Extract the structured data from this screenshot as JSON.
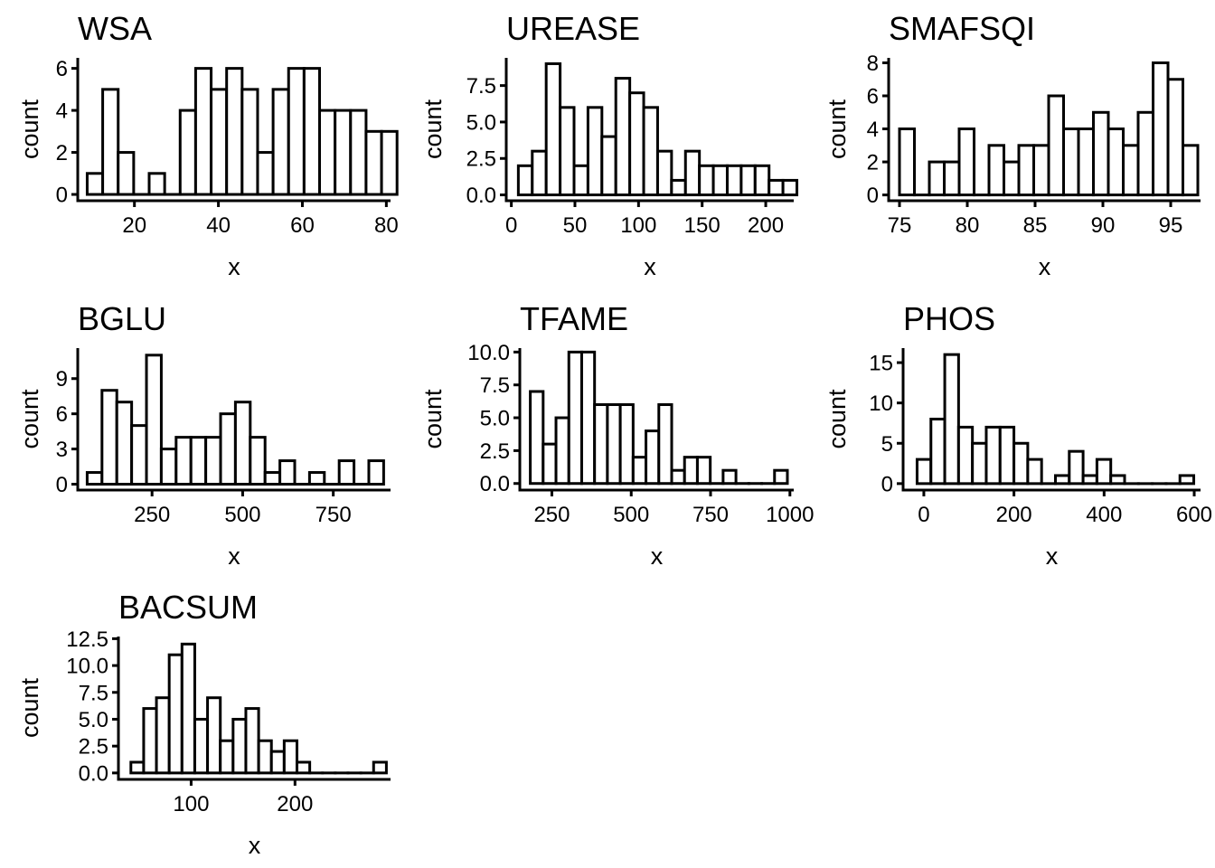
{
  "chart_data": [
    {
      "type": "bar",
      "title": "WSA",
      "xlabel": "x",
      "ylabel": "count",
      "xlim": [
        6.5,
        81
      ],
      "ylim": [
        -0.3,
        6.5
      ],
      "xticks": [
        20,
        40,
        60,
        80
      ],
      "xtick_labels": [
        "20",
        "40",
        "60",
        "80"
      ],
      "yticks": [
        0,
        2,
        4,
        6
      ],
      "ytick_labels": [
        "0",
        "2",
        "4",
        "6"
      ],
      "bin_start": 8.75,
      "bin_width": 3.69,
      "values": [
        1,
        5,
        2,
        0,
        1,
        0,
        4,
        6,
        5,
        6,
        5,
        2,
        5,
        6,
        6,
        4,
        4,
        4,
        3,
        3
      ]
    },
    {
      "type": "bar",
      "title": "UREASE",
      "xlabel": "x",
      "ylabel": "count",
      "xlim": [
        -4,
        222
      ],
      "ylim": [
        -0.4,
        9.4
      ],
      "xticks": [
        0,
        50,
        100,
        150,
        200
      ],
      "xtick_labels": [
        "0",
        "50",
        "100",
        "150",
        "200"
      ],
      "yticks": [
        0,
        2.5,
        5,
        7.5
      ],
      "ytick_labels": [
        "0.0",
        "2.5",
        "5.0",
        "7.5"
      ],
      "bin_start": 5.5,
      "bin_width": 10.95,
      "values": [
        2,
        3,
        9,
        6,
        2,
        6,
        4,
        8,
        7,
        6,
        3,
        1,
        3,
        2,
        2,
        2,
        2,
        2,
        1,
        1
      ]
    },
    {
      "type": "bar",
      "title": "SMAFSQI",
      "xlabel": "x",
      "ylabel": "count",
      "xlim": [
        74.2,
        97.2
      ],
      "ylim": [
        -0.35,
        8.3
      ],
      "xticks": [
        75,
        80,
        85,
        90,
        95
      ],
      "xtick_labels": [
        "75",
        "80",
        "85",
        "90",
        "95"
      ],
      "yticks": [
        0,
        2,
        4,
        6,
        8
      ],
      "ytick_labels": [
        "0",
        "2",
        "4",
        "6",
        "8"
      ],
      "bin_start": 75.0,
      "bin_width": 1.1,
      "values": [
        4,
        0,
        2,
        2,
        4,
        0,
        3,
        2,
        3,
        3,
        6,
        4,
        4,
        5,
        4,
        3,
        5,
        8,
        7,
        3
      ]
    },
    {
      "type": "bar",
      "title": "BGLU",
      "xlabel": "x",
      "ylabel": "count",
      "xlim": [
        45,
        908
      ],
      "ylim": [
        -0.5,
        11.6
      ],
      "xticks": [
        250,
        500,
        750
      ],
      "xtick_labels": [
        "250",
        "500",
        "750"
      ],
      "yticks": [
        0,
        3,
        6,
        9
      ],
      "ytick_labels": [
        "0",
        "3",
        "6",
        "9"
      ],
      "bin_start": 71,
      "bin_width": 40.9,
      "values": [
        1,
        8,
        7,
        5,
        11,
        3,
        4,
        4,
        4,
        6,
        7,
        4,
        1,
        2,
        0,
        1,
        0,
        2,
        0,
        2
      ]
    },
    {
      "type": "bar",
      "title": "TFAME",
      "xlabel": "x",
      "ylabel": "count",
      "xlim": [
        149,
        1012
      ],
      "ylim": [
        -0.5,
        10.3
      ],
      "xticks": [
        250,
        500,
        750,
        1000
      ],
      "xtick_labels": [
        "250",
        "500",
        "750",
        "1000"
      ],
      "yticks": [
        0,
        2.5,
        5,
        7.5,
        10
      ],
      "ytick_labels": [
        "0.0",
        "2.5",
        "5.0",
        "7.5",
        "10.0"
      ],
      "bin_start": 182,
      "bin_width": 40.5,
      "values": [
        7,
        3,
        5,
        10,
        10,
        6,
        6,
        6,
        2,
        4,
        6,
        1,
        2,
        2,
        0,
        1,
        0,
        0,
        0,
        1
      ]
    },
    {
      "type": "bar",
      "title": "PHOS",
      "xlabel": "x",
      "ylabel": "count",
      "xlim": [
        -46,
        614
      ],
      "ylim": [
        -0.8,
        16.8
      ],
      "xticks": [
        0,
        200,
        400,
        600
      ],
      "xtick_labels": [
        "0",
        "200",
        "400",
        "600"
      ],
      "yticks": [
        0,
        5,
        10,
        15
      ],
      "ytick_labels": [
        "0",
        "5",
        "10",
        "15"
      ],
      "bin_start": -15,
      "bin_width": 30.7,
      "values": [
        3,
        8,
        16,
        7,
        5,
        7,
        7,
        5,
        3,
        0,
        1,
        4,
        1,
        3,
        1,
        0,
        0,
        0,
        0,
        1
      ]
    },
    {
      "type": "bar",
      "title": "BACSUM",
      "xlabel": "x",
      "ylabel": "count",
      "xlim": [
        30,
        292
      ],
      "ylim": [
        -0.6,
        12.7
      ],
      "xticks": [
        100,
        200
      ],
      "xtick_labels": [
        "100",
        "200"
      ],
      "yticks": [
        0,
        2.5,
        5,
        7.5,
        10,
        12.5
      ],
      "ytick_labels": [
        "0.0",
        "2.5",
        "5.0",
        "7.5",
        "10.0",
        "12.5"
      ],
      "bin_start": 42,
      "bin_width": 12.3,
      "values": [
        1,
        6,
        7,
        11,
        12,
        5,
        7,
        3,
        5,
        6,
        3,
        2,
        3,
        1,
        0,
        0,
        0,
        0,
        0,
        1
      ]
    }
  ]
}
